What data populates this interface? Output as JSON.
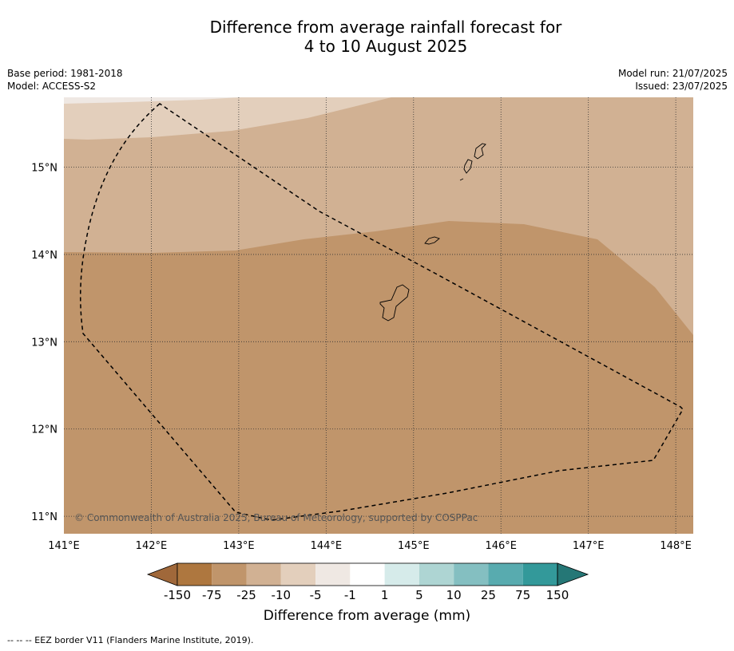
{
  "title_line1": "Difference from average rainfall forecast for",
  "title_line2": "4 to 10 August 2025",
  "base_period": "Base period: 1981-2018",
  "model": "Model: ACCESS-S2",
  "model_run": "Model run: 21/07/2025",
  "issued": "Issued: 23/07/2025",
  "copyright": "© Commonwealth of Australia 2025, Bureau of Meteorology, supported by COSPPac",
  "footer_note": "--  --  -- EEZ border V11 (Flanders Marine Institute, 2019).",
  "map": {
    "lon_range": [
      141,
      148.2
    ],
    "lat_range": [
      10.8,
      15.8
    ],
    "lon_ticks": [
      "141°E",
      "142°E",
      "143°E",
      "144°E",
      "145°E",
      "146°E",
      "147°E",
      "148°E"
    ],
    "lat_ticks": [
      "15°N",
      "14°N",
      "13°N",
      "12°N",
      "11°N"
    ],
    "grid": true,
    "eez_border": "dashed",
    "colors": {
      "lt_-150": "#a0683a",
      "-150_-75": "#ae773f",
      "-75_-25": "#c0956b",
      "-25_-10": "#d1b193",
      "-10_-5": "#e3cfbc",
      "-5_-1": "#efe8e3",
      "-1_1": "#ffffff",
      "1_5": "#d6ebea",
      "5_10": "#aed5d3",
      "10_25": "#84bfc1",
      "25_75": "#58abaf",
      "75_150": "#33999a",
      "gt_150": "#257776"
    }
  },
  "colorbar": {
    "title": "Difference from average (mm)",
    "labels": [
      "-150",
      "-75",
      "-25",
      "-10",
      "-5",
      "-1",
      "1",
      "5",
      "10",
      "25",
      "75",
      "150"
    ]
  }
}
